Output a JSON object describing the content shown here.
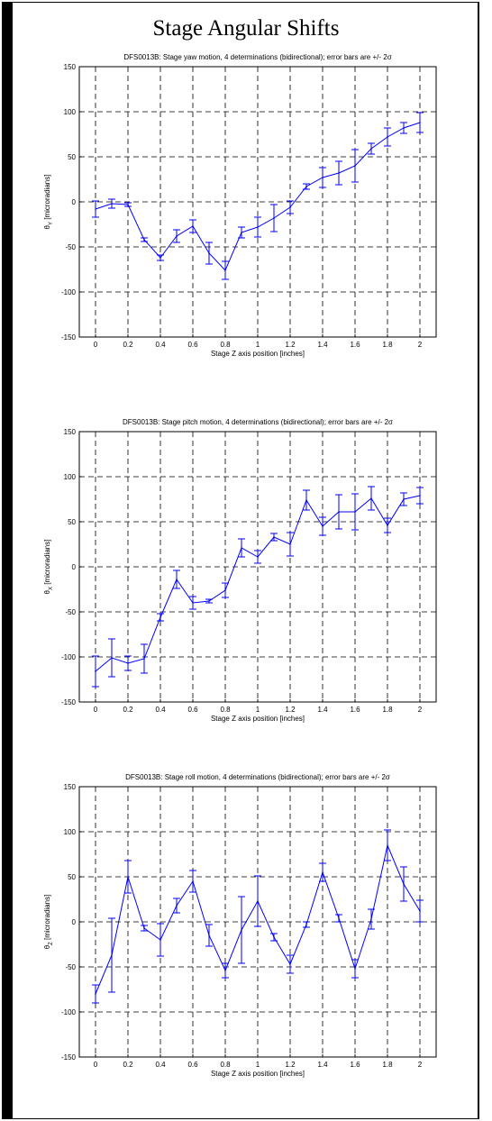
{
  "page": {
    "title": "Stage Angular Shifts"
  },
  "colors": {
    "series": "#0000ff",
    "grid": "#000000",
    "axis": "#000000"
  },
  "chart_data": [
    {
      "type": "line",
      "title": "DFS0013B:  Stage yaw motion, 4 determinations (bidirectional); error bars are +/- 2σ",
      "xlabel": "Stage Z axis position [inches]",
      "ylabel": "θY [microradians]",
      "ylabel_main": "θ",
      "ylabel_sub": "Y",
      "ylabel_rest": " [microradians]",
      "xlim": [
        -0.1,
        2.1
      ],
      "ylim": [
        -150,
        150
      ],
      "xticks": [
        0,
        0.2,
        0.4,
        0.6,
        0.8,
        1,
        1.2,
        1.4,
        1.6,
        1.8,
        2
      ],
      "xtick_labels": [
        "0",
        "0.2",
        "0.4",
        "0.6",
        "0.8",
        "1",
        "1.2",
        "1.4",
        "1.6",
        "1.8",
        "2"
      ],
      "yticks": [
        -150,
        -100,
        -50,
        0,
        50,
        100,
        150
      ],
      "ytick_labels": [
        "-150",
        "-100",
        "-50",
        "0",
        "50",
        "100",
        "150"
      ],
      "grid": true,
      "x": [
        0,
        0.1,
        0.2,
        0.3,
        0.4,
        0.5,
        0.6,
        0.7,
        0.8,
        0.9,
        1,
        1.1,
        1.2,
        1.3,
        1.4,
        1.5,
        1.6,
        1.7,
        1.8,
        1.9,
        2
      ],
      "y": [
        -8,
        -2,
        -3,
        -42,
        -62,
        -38,
        -27,
        -57,
        -76,
        -34,
        -28,
        -18,
        -6,
        17,
        27,
        32,
        40,
        59,
        72,
        82,
        88
      ],
      "err": [
        9,
        5,
        2,
        2,
        3,
        7,
        7,
        12,
        10,
        6,
        11,
        15,
        7,
        3,
        11,
        13,
        18,
        6,
        10,
        6,
        11
      ]
    },
    {
      "type": "line",
      "title": "DFS0013B:  Stage pitch motion, 4 determinations (bidirectional); error bars are +/- 2σ",
      "xlabel": "Stage Z axis position [inches]",
      "ylabel": "θX [microradians]",
      "ylabel_main": "θ",
      "ylabel_sub": "X",
      "ylabel_rest": " [microradians]",
      "xlim": [
        -0.1,
        2.1
      ],
      "ylim": [
        -150,
        150
      ],
      "xticks": [
        0,
        0.2,
        0.4,
        0.6,
        0.8,
        1,
        1.2,
        1.4,
        1.6,
        1.8,
        2
      ],
      "xtick_labels": [
        "0",
        "0.2",
        "0.4",
        "0.6",
        "0.8",
        "1",
        "1.2",
        "1.4",
        "1.6",
        "1.8",
        "2"
      ],
      "yticks": [
        -150,
        -100,
        -50,
        0,
        50,
        100,
        150
      ],
      "ytick_labels": [
        "-150",
        "-100",
        "-50",
        "0",
        "50",
        "100",
        "150"
      ],
      "grid": true,
      "x": [
        0,
        0.1,
        0.2,
        0.3,
        0.4,
        0.5,
        0.6,
        0.7,
        0.8,
        0.9,
        1,
        1.1,
        1.2,
        1.3,
        1.4,
        1.5,
        1.6,
        1.7,
        1.8,
        1.9,
        2
      ],
      "y": [
        -116,
        -101,
        -107,
        -102,
        -56,
        -14,
        -40,
        -38,
        -26,
        21,
        11,
        33,
        25,
        74,
        45,
        61,
        61,
        76,
        46,
        75,
        79
      ],
      "err": [
        17,
        21,
        8,
        16,
        4,
        10,
        7,
        2,
        8,
        10,
        7,
        4,
        13,
        11,
        10,
        19,
        20,
        13,
        8,
        7,
        9
      ]
    },
    {
      "type": "line",
      "title": "DFS0013B:  Stage roll motion, 4 determinations (bidirectional); error bars are +/- 2σ",
      "xlabel": "Stage Z axis position [inches]",
      "ylabel": "θZ [microradians]",
      "ylabel_main": "θ",
      "ylabel_sub": "Z",
      "ylabel_rest": " [microradians]",
      "xlim": [
        -0.1,
        2.1
      ],
      "ylim": [
        -150,
        150
      ],
      "xticks": [
        0,
        0.2,
        0.4,
        0.6,
        0.8,
        1,
        1.2,
        1.4,
        1.6,
        1.8,
        2
      ],
      "xtick_labels": [
        "0",
        "0.2",
        "0.4",
        "0.6",
        "0.8",
        "1",
        "1.2",
        "1.4",
        "1.6",
        "1.8",
        "2"
      ],
      "yticks": [
        -150,
        -100,
        -50,
        0,
        50,
        100,
        150
      ],
      "ytick_labels": [
        "-150",
        "-100",
        "-50",
        "0",
        "50",
        "100",
        "150"
      ],
      "grid": true,
      "x": [
        0,
        0.1,
        0.2,
        0.3,
        0.4,
        0.5,
        0.6,
        0.7,
        0.8,
        0.9,
        1,
        1.1,
        1.2,
        1.3,
        1.4,
        1.5,
        1.6,
        1.7,
        1.8,
        1.9,
        2
      ],
      "y": [
        -80,
        -37,
        50,
        -7,
        -20,
        18,
        45,
        -15,
        -54,
        -9,
        23,
        -17,
        -47,
        -3,
        55,
        4,
        -52,
        3,
        85,
        42,
        12
      ],
      "err": [
        10,
        41,
        18,
        3,
        18,
        8,
        12,
        12,
        8,
        37,
        28,
        4,
        10,
        3,
        10,
        4,
        10,
        11,
        17,
        19,
        12
      ]
    }
  ]
}
